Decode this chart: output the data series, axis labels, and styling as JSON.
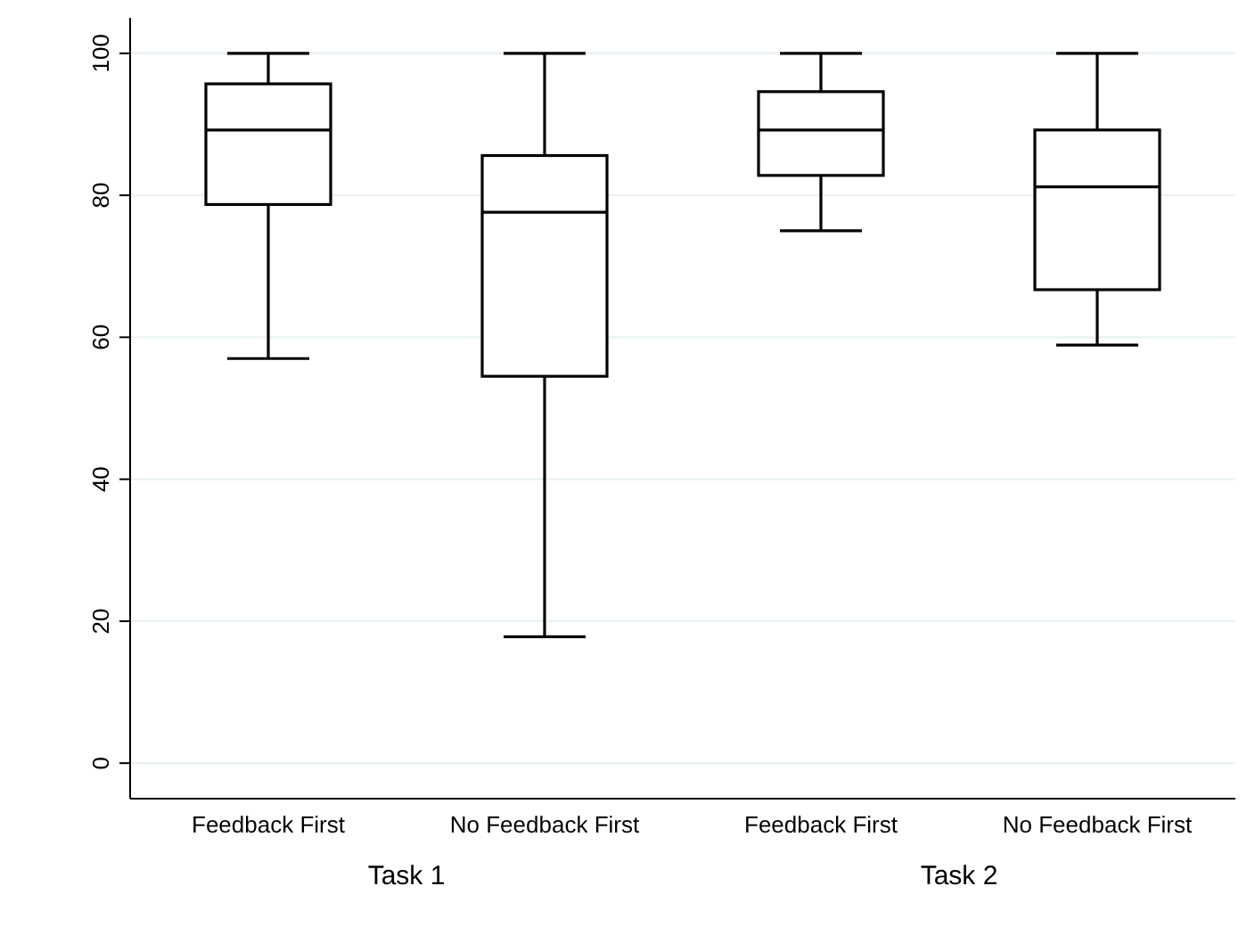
{
  "chart_data": {
    "type": "box",
    "categories": [
      "Feedback First",
      "No Feedback First",
      "Feedback First",
      "No Feedback First"
    ],
    "boxes": [
      {
        "low": 57,
        "q1": 78.7,
        "median": 89.2,
        "q3": 95.7,
        "high": 100
      },
      {
        "low": 17.8,
        "q1": 54.5,
        "median": 77.6,
        "q3": 85.6,
        "high": 100
      },
      {
        "low": 75,
        "q1": 82.8,
        "median": 89.2,
        "q3": 94.6,
        "high": 100
      },
      {
        "low": 58.9,
        "q1": 66.7,
        "median": 81.2,
        "q3": 89.2,
        "high": 100
      }
    ],
    "color": "#000000",
    "annotations": [
      "Task 1",
      "Task 2"
    ],
    "ylim": [
      -5,
      105
    ],
    "yticks": [
      0,
      20,
      40,
      60,
      80,
      100
    ],
    "grid": "y"
  }
}
